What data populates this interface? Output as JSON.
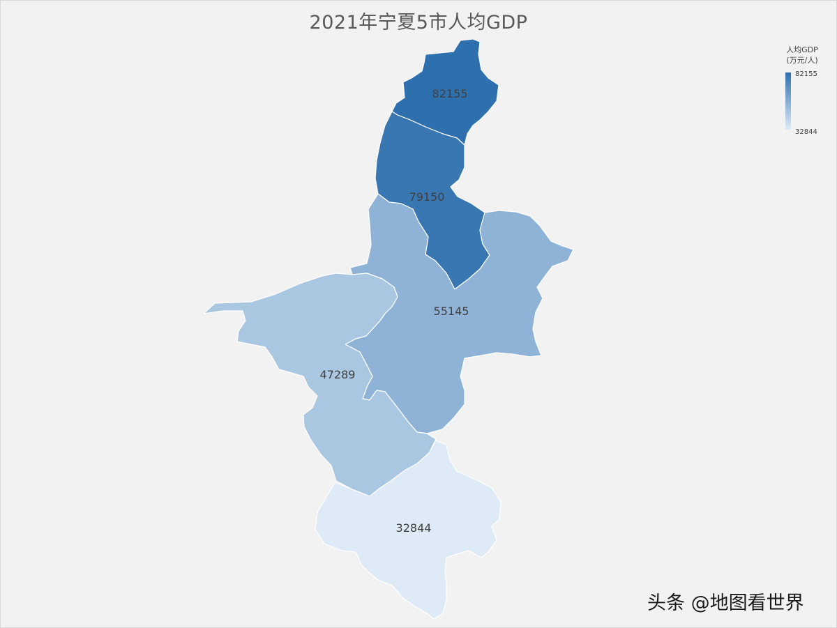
{
  "title": "2021年宁夏5市人均GDP",
  "legend": {
    "title_line1": "人均GDP",
    "title_line2": "(万元/人)",
    "max_label": "82155",
    "min_label": "32844",
    "color_high": "#2e6fae",
    "color_low": "#deebf7"
  },
  "map_data": {
    "type": "choropleth",
    "regions": [
      {
        "id": "north",
        "value": 82155,
        "label": "82155"
      },
      {
        "id": "north-central",
        "value": 79150,
        "label": "79150"
      },
      {
        "id": "east",
        "value": 55145,
        "label": "55145"
      },
      {
        "id": "west",
        "value": 47289,
        "label": "47289"
      },
      {
        "id": "south",
        "value": 32844,
        "label": "32844"
      }
    ]
  },
  "watermark": "头条 @地图看世界"
}
